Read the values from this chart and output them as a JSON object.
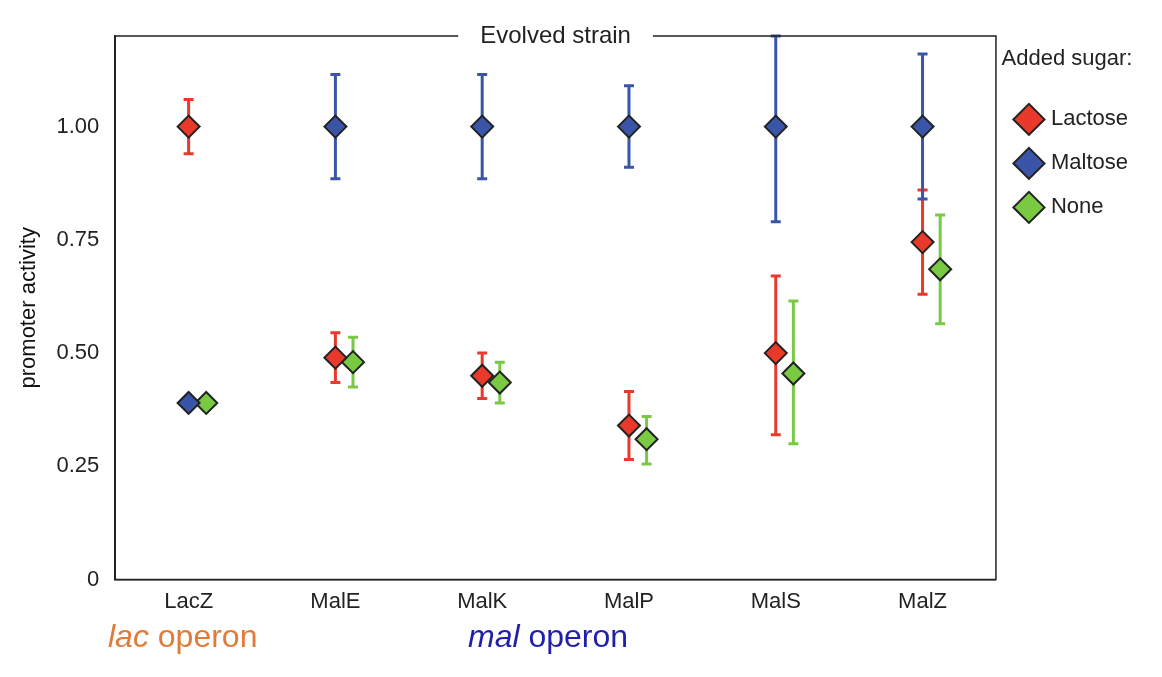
{
  "chart_data": {
    "type": "scatter",
    "title": "Evolved strain",
    "ylabel": "promoter activity",
    "legend_title": "Added sugar:",
    "legend": "right",
    "marker": "diamond",
    "grid": false,
    "categories": [
      "LacZ",
      "MalE",
      "MalK",
      "MalP",
      "MalS",
      "MalZ"
    ],
    "ylim": [
      0,
      1.2
    ],
    "yticks": [
      0,
      0.25,
      {
        "value": 0.5,
        "label": "0.50"
      },
      0.75,
      {
        "value": 1,
        "label": "1.00"
      }
    ],
    "series": [
      {
        "name": "Lactose",
        "color": "#e8392b",
        "values": [
          1.0,
          0.49,
          0.45,
          0.34,
          0.5,
          0.745
        ],
        "errors": [
          [
            0.94,
            1.06
          ],
          [
            0.435,
            0.545
          ],
          [
            0.4,
            0.5
          ],
          [
            0.265,
            0.415
          ],
          [
            0.32,
            0.67
          ],
          [
            0.63,
            0.86
          ]
        ]
      },
      {
        "name": "Maltose",
        "color": "#3a55a8",
        "values": [
          0.39,
          1.0,
          1.0,
          1.0,
          1.0,
          1.0
        ],
        "errors": [
          null,
          [
            0.885,
            1.115
          ],
          [
            0.885,
            1.115
          ],
          [
            0.91,
            1.09
          ],
          [
            0.79,
            1.2
          ],
          [
            0.84,
            1.16
          ]
        ]
      },
      {
        "name": "None",
        "color": "#7ac943",
        "values": [
          0.39,
          0.48,
          0.435,
          0.31,
          0.455,
          0.685
        ],
        "errors": [
          null,
          [
            0.425,
            0.535
          ],
          [
            0.39,
            0.48
          ],
          [
            0.255,
            0.36
          ],
          [
            0.3,
            0.615
          ],
          [
            0.565,
            0.805
          ]
        ]
      }
    ],
    "annotations": [
      "lac operon",
      "mal operon"
    ]
  }
}
